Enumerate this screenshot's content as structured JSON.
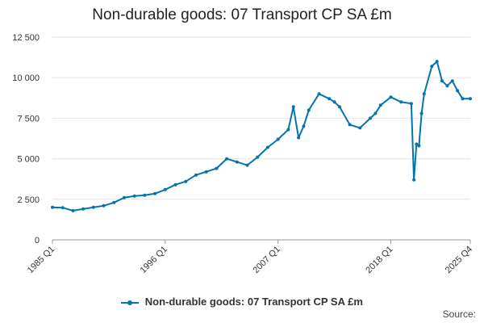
{
  "chart_data": {
    "type": "line",
    "title": "Non-durable goods: 07 Transport CP SA £m",
    "xlabel": "",
    "ylabel": "",
    "x_tick_labels": [
      "1985 Q1",
      "1996 Q1",
      "2007 Q1",
      "2018 Q1",
      "2025 Q4"
    ],
    "y_tick_labels": [
      "0",
      "2 500",
      "5 000",
      "7 500",
      "10 000",
      "12 500"
    ],
    "ylim": [
      0,
      12500
    ],
    "grid": true,
    "legend_position": "bottom",
    "series": [
      {
        "name": "Non-durable goods: 07 Transport CP SA £m",
        "color": "#0075b0",
        "x": [
          "1985 Q1",
          "1986 Q1",
          "1987 Q1",
          "1988 Q1",
          "1989 Q1",
          "1990 Q1",
          "1991 Q1",
          "1992 Q1",
          "1993 Q1",
          "1994 Q1",
          "1995 Q1",
          "1996 Q1",
          "1997 Q1",
          "1998 Q1",
          "1999 Q1",
          "2000 Q1",
          "2001 Q1",
          "2002 Q1",
          "2003 Q1",
          "2004 Q1",
          "2005 Q1",
          "2006 Q1",
          "2007 Q1",
          "2008 Q1",
          "2008 Q3",
          "2009 Q1",
          "2009 Q3",
          "2010 Q1",
          "2011 Q1",
          "2012 Q1",
          "2012 Q3",
          "2013 Q1",
          "2014 Q1",
          "2015 Q1",
          "2016 Q1",
          "2016 Q3",
          "2017 Q1",
          "2018 Q1",
          "2019 Q1",
          "2020 Q1",
          "2020 Q2",
          "2020 Q3",
          "2020 Q4",
          "2021 Q1",
          "2021 Q2",
          "2022 Q1",
          "2022 Q3",
          "2023 Q1",
          "2023 Q3",
          "2024 Q1",
          "2024 Q3",
          "2025 Q1",
          "2025 Q4"
        ],
        "values": [
          2000,
          1980,
          1800,
          1900,
          2000,
          2100,
          2300,
          2600,
          2700,
          2750,
          2850,
          3100,
          3400,
          3600,
          4000,
          4200,
          4400,
          5000,
          4800,
          4600,
          5100,
          5700,
          6200,
          6800,
          8200,
          6300,
          7000,
          8000,
          9000,
          8700,
          8500,
          8200,
          7100,
          6900,
          7500,
          7800,
          8300,
          8800,
          8500,
          8400,
          3700,
          5900,
          5800,
          7800,
          9000,
          10700,
          11000,
          9800,
          9500,
          9800,
          9200,
          8700,
          8700
        ]
      }
    ]
  },
  "legend": {
    "label": "Non-durable goods: 07 Transport CP SA £m"
  },
  "source_label": "Source:"
}
